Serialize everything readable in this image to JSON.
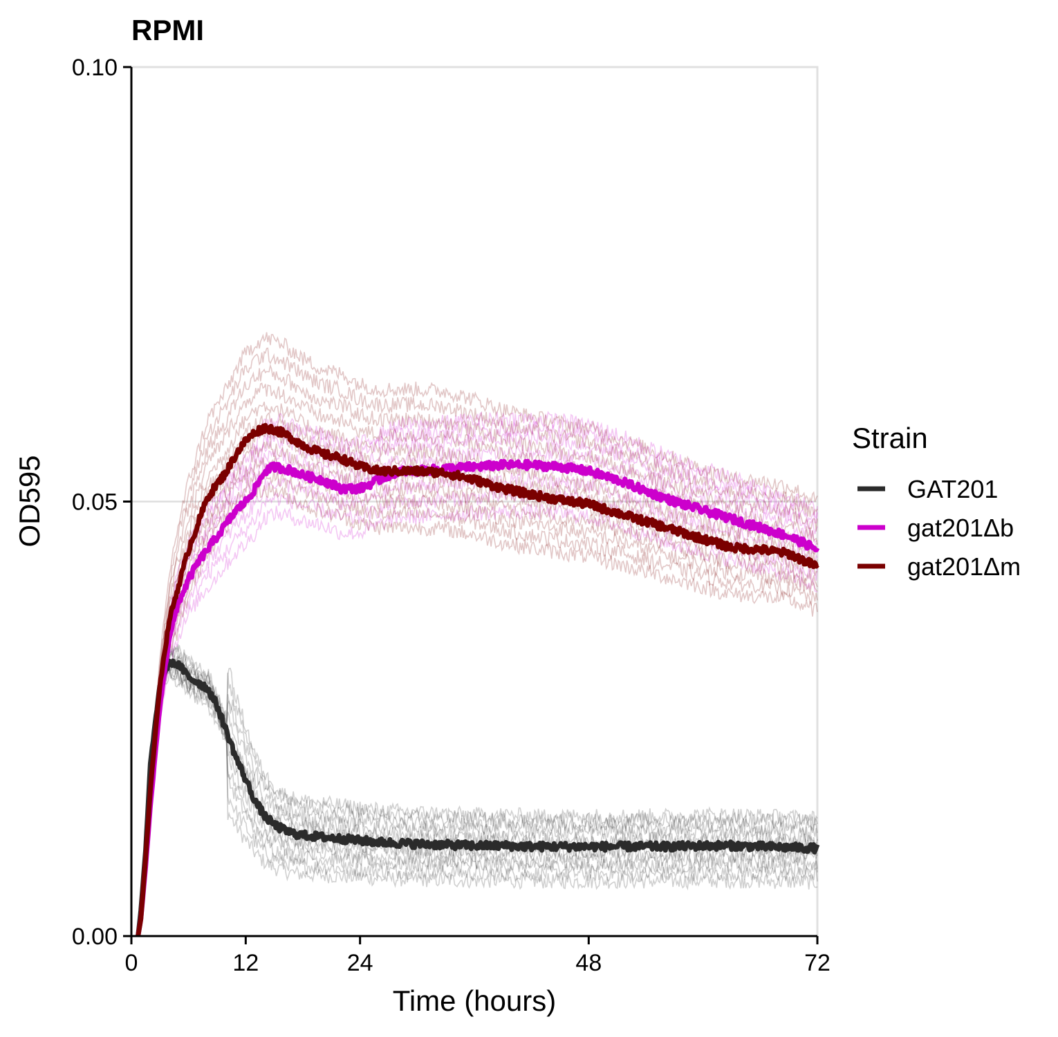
{
  "chart_data": {
    "type": "line",
    "title": "RPMI",
    "xlabel": "Time (hours)",
    "ylabel": "OD595",
    "xlim": [
      0,
      72
    ],
    "ylim": [
      0,
      0.1
    ],
    "x_ticks": [
      0,
      12,
      24,
      48,
      72
    ],
    "x_tick_labels": [
      "0",
      "12",
      "24",
      "48",
      "72"
    ],
    "y_ticks": [
      0,
      0.05,
      0.1
    ],
    "y_tick_labels": [
      "0.00",
      "0.05",
      "0.10"
    ],
    "grid": "horizontal at 0.05 and 0.10",
    "legend": {
      "title": "Strain",
      "position": "right"
    },
    "x": [
      0.7,
      1,
      1.5,
      2,
      3,
      4,
      5,
      6,
      7,
      8,
      9,
      10,
      11,
      12,
      13,
      14,
      15,
      16,
      17,
      18,
      20,
      22,
      24,
      26,
      28,
      30,
      33,
      36,
      39,
      42,
      45,
      48,
      51,
      54,
      57,
      60,
      63,
      66,
      69,
      72
    ],
    "series": [
      {
        "name": "GAT201",
        "color": "#2b2b2b",
        "values": [
          0,
          0.003,
          0.01,
          0.02,
          0.029,
          0.0315,
          0.0312,
          0.0298,
          0.0292,
          0.0285,
          0.0265,
          0.0235,
          0.0205,
          0.018,
          0.0155,
          0.0138,
          0.0128,
          0.0122,
          0.0118,
          0.0116,
          0.0114,
          0.0112,
          0.011,
          0.0108,
          0.0107,
          0.0106,
          0.0105,
          0.0104,
          0.0104,
          0.0103,
          0.0103,
          0.0103,
          0.0103,
          0.0103,
          0.0103,
          0.0104,
          0.0104,
          0.0103,
          0.0102,
          0.0101
        ]
      },
      {
        "name": "gat201Δb",
        "color": "#cc00cc",
        "values": [
          0,
          0.002,
          0.008,
          0.015,
          0.0265,
          0.0345,
          0.0385,
          0.041,
          0.043,
          0.0445,
          0.046,
          0.0475,
          0.049,
          0.05,
          0.0515,
          0.0535,
          0.054,
          0.0538,
          0.0535,
          0.053,
          0.0525,
          0.0515,
          0.0515,
          0.0525,
          0.0535,
          0.0535,
          0.0538,
          0.054,
          0.0542,
          0.0542,
          0.054,
          0.0535,
          0.0525,
          0.0512,
          0.05,
          0.049,
          0.048,
          0.047,
          0.046,
          0.0445
        ]
      },
      {
        "name": "gat201Δm",
        "color": "#7a0000",
        "values": [
          0,
          0.002,
          0.009,
          0.017,
          0.029,
          0.0365,
          0.0405,
          0.0445,
          0.0475,
          0.0505,
          0.052,
          0.0535,
          0.0555,
          0.057,
          0.058,
          0.0585,
          0.0583,
          0.0578,
          0.0572,
          0.0565,
          0.0555,
          0.055,
          0.054,
          0.0535,
          0.0535,
          0.0535,
          0.0533,
          0.0525,
          0.0515,
          0.0508,
          0.0502,
          0.0497,
          0.0487,
          0.0477,
          0.0467,
          0.0457,
          0.0447,
          0.0445,
          0.044,
          0.0425
        ]
      }
    ],
    "replicate_lines": "faint individual-well traces shown around each strain mean"
  }
}
